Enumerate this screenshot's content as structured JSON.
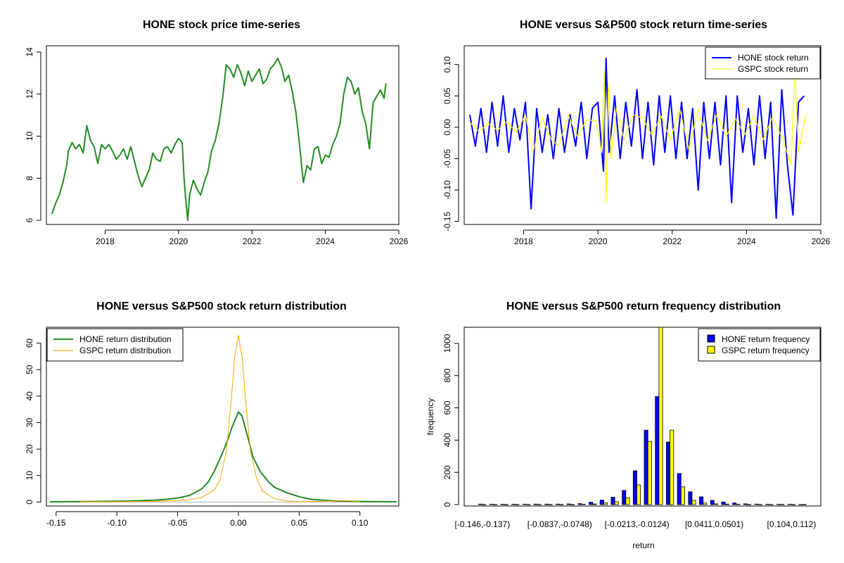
{
  "colors": {
    "green": "#228B22",
    "blue": "#0000FF",
    "yellow": "#FFFF00",
    "orange": "#FFA500"
  },
  "chart_data": [
    {
      "type": "line",
      "title": "HONE stock price time-series",
      "xlim": [
        2016.4,
        2026.0
      ],
      "ylim": [
        5.8,
        14.3
      ],
      "xticks": [
        "2018",
        "2020",
        "2022",
        "2024",
        "2026"
      ],
      "xtick_values": [
        2018,
        2020,
        2022,
        2024,
        2026
      ],
      "yticks": [
        "6",
        "8",
        "10",
        "12",
        "14"
      ],
      "ytick_values": [
        6,
        8,
        10,
        12,
        14
      ],
      "color": "#228B22",
      "series": [
        {
          "x": [
            2016.55,
            2016.65,
            2016.75,
            2016.85,
            2016.95,
            2017.0,
            2017.1,
            2017.2,
            2017.3,
            2017.4,
            2017.5,
            2017.6,
            2017.7,
            2017.8,
            2017.9,
            2018.0,
            2018.1,
            2018.2,
            2018.3,
            2018.4,
            2018.5,
            2018.6,
            2018.7,
            2018.8,
            2018.9,
            2019.0,
            2019.1,
            2019.2,
            2019.3,
            2019.4,
            2019.5,
            2019.6,
            2019.7,
            2019.8,
            2019.9,
            2020.0,
            2020.1,
            2020.15,
            2020.2,
            2020.25,
            2020.3,
            2020.4,
            2020.5,
            2020.6,
            2020.7,
            2020.8,
            2020.9,
            2021.0,
            2021.1,
            2021.2,
            2021.3,
            2021.4,
            2021.5,
            2021.6,
            2021.7,
            2021.8,
            2021.9,
            2022.0,
            2022.1,
            2022.2,
            2022.3,
            2022.4,
            2022.5,
            2022.6,
            2022.7,
            2022.8,
            2022.9,
            2023.0,
            2023.1,
            2023.2,
            2023.3,
            2023.4,
            2023.5,
            2023.6,
            2023.7,
            2023.8,
            2023.9,
            2024.0,
            2024.1,
            2024.2,
            2024.3,
            2024.4,
            2024.5,
            2024.6,
            2024.7,
            2024.8,
            2024.9,
            2025.0,
            2025.1,
            2025.2,
            2025.3,
            2025.4,
            2025.5,
            2025.6,
            2025.65
          ],
          "values": [
            6.3,
            6.8,
            7.2,
            7.8,
            8.6,
            9.3,
            9.7,
            9.4,
            9.6,
            9.2,
            10.5,
            9.8,
            9.5,
            8.7,
            9.6,
            9.4,
            9.6,
            9.3,
            8.9,
            9.1,
            9.4,
            8.9,
            9.5,
            8.8,
            8.1,
            7.6,
            8.0,
            8.4,
            9.2,
            8.9,
            8.8,
            9.4,
            9.5,
            9.2,
            9.6,
            9.9,
            9.7,
            8.0,
            6.9,
            6.0,
            7.2,
            7.9,
            7.5,
            7.2,
            7.8,
            8.3,
            9.3,
            9.8,
            10.6,
            11.8,
            13.4,
            13.2,
            12.8,
            13.4,
            13.0,
            12.4,
            13.1,
            12.6,
            12.9,
            13.2,
            12.5,
            12.7,
            13.2,
            13.4,
            13.7,
            13.3,
            12.6,
            12.9,
            12.1,
            11.1,
            9.5,
            7.8,
            8.6,
            8.4,
            9.4,
            9.5,
            8.7,
            9.1,
            9.0,
            9.6,
            10.0,
            10.6,
            12.0,
            12.8,
            12.6,
            12.0,
            12.3,
            11.2,
            10.6,
            9.4,
            11.6,
            11.9,
            12.2,
            11.8,
            12.5
          ]
        }
      ]
    },
    {
      "type": "line",
      "title": "HONE versus S&P500 stock return time-series",
      "xlim": [
        2016.4,
        2026.0
      ],
      "ylim": [
        -0.155,
        0.13
      ],
      "xticks": [
        "2018",
        "2020",
        "2022",
        "2024",
        "2026"
      ],
      "xtick_values": [
        2018,
        2020,
        2022,
        2024,
        2026
      ],
      "yticks": [
        "-0.15",
        "-0.10",
        "-0.05",
        "0.00",
        "0.05",
        "0.10"
      ],
      "ytick_values": [
        -0.15,
        -0.1,
        -0.05,
        0.0,
        0.05,
        0.1
      ],
      "legend_position": "top-right",
      "series": [
        {
          "name": "HONE stock return",
          "color": "#0000FF",
          "x": [
            2016.55,
            2016.7,
            2016.85,
            2017.0,
            2017.15,
            2017.3,
            2017.45,
            2017.6,
            2017.75,
            2017.9,
            2018.05,
            2018.2,
            2018.35,
            2018.5,
            2018.65,
            2018.8,
            2018.95,
            2019.1,
            2019.25,
            2019.4,
            2019.55,
            2019.7,
            2019.85,
            2020.0,
            2020.15,
            2020.22,
            2020.3,
            2020.45,
            2020.6,
            2020.75,
            2020.9,
            2021.05,
            2021.2,
            2021.35,
            2021.5,
            2021.65,
            2021.8,
            2021.95,
            2022.1,
            2022.25,
            2022.4,
            2022.55,
            2022.7,
            2022.85,
            2023.0,
            2023.15,
            2023.3,
            2023.45,
            2023.6,
            2023.75,
            2023.9,
            2024.05,
            2024.2,
            2024.35,
            2024.5,
            2024.65,
            2024.8,
            2024.95,
            2025.1,
            2025.25,
            2025.4,
            2025.55
          ],
          "values": [
            0.02,
            -0.03,
            0.03,
            -0.04,
            0.04,
            -0.03,
            0.05,
            -0.04,
            0.03,
            -0.02,
            0.04,
            -0.13,
            0.03,
            -0.04,
            0.02,
            -0.05,
            0.03,
            -0.04,
            0.02,
            -0.03,
            0.04,
            -0.05,
            0.03,
            0.04,
            -0.07,
            0.11,
            -0.04,
            0.05,
            -0.05,
            0.04,
            -0.03,
            0.06,
            -0.05,
            0.04,
            -0.06,
            0.05,
            -0.04,
            0.05,
            -0.05,
            0.04,
            -0.05,
            0.03,
            -0.1,
            0.04,
            -0.05,
            0.04,
            -0.06,
            0.05,
            -0.12,
            0.05,
            -0.04,
            0.03,
            -0.06,
            0.05,
            -0.05,
            0.04,
            -0.145,
            0.06,
            -0.06,
            -0.14,
            0.04,
            0.05
          ]
        },
        {
          "name": "GSPC stock return",
          "color": "#FFFF00",
          "x": [
            2016.55,
            2016.8,
            2017.05,
            2017.3,
            2017.55,
            2017.8,
            2018.05,
            2018.25,
            2018.5,
            2018.75,
            2018.95,
            2019.2,
            2019.45,
            2019.7,
            2019.95,
            2020.1,
            2020.17,
            2020.22,
            2020.28,
            2020.35,
            2020.5,
            2020.7,
            2020.95,
            2021.2,
            2021.45,
            2021.7,
            2021.95,
            2022.2,
            2022.45,
            2022.7,
            2022.95,
            2023.2,
            2023.45,
            2023.7,
            2023.95,
            2024.2,
            2024.45,
            2024.7,
            2024.95,
            2025.2,
            2025.3,
            2025.4,
            2025.6
          ],
          "values": [
            0.008,
            -0.007,
            0.006,
            -0.005,
            0.009,
            -0.008,
            0.02,
            -0.04,
            0.015,
            -0.02,
            -0.03,
            0.02,
            -0.015,
            0.012,
            0.01,
            -0.04,
            0.09,
            -0.12,
            0.07,
            -0.05,
            0.03,
            -0.02,
            0.02,
            0.015,
            -0.012,
            0.018,
            -0.02,
            0.03,
            -0.035,
            0.028,
            -0.022,
            0.02,
            -0.015,
            0.014,
            -0.012,
            0.018,
            -0.02,
            0.016,
            -0.015,
            -0.06,
            0.095,
            -0.04,
            0.02
          ]
        }
      ]
    },
    {
      "type": "line",
      "title": "HONE versus S&P500 stock return distribution",
      "xlim": [
        -0.158,
        0.132
      ],
      "ylim": [
        -1.5,
        66
      ],
      "xticks": [
        "-0.15",
        "-0.10",
        "-0.05",
        "0.00",
        "0.05",
        "0.10"
      ],
      "xtick_values": [
        -0.15,
        -0.1,
        -0.05,
        0.0,
        0.05,
        0.1
      ],
      "yticks": [
        "0",
        "10",
        "20",
        "30",
        "40",
        "50",
        "60"
      ],
      "ytick_values": [
        0,
        10,
        20,
        30,
        40,
        50,
        60
      ],
      "legend_position": "top-left",
      "series": [
        {
          "name": "HONE return distribution",
          "color": "#228B22",
          "x": [
            -0.155,
            -0.12,
            -0.09,
            -0.07,
            -0.06,
            -0.05,
            -0.04,
            -0.03,
            -0.025,
            -0.02,
            -0.015,
            -0.01,
            -0.005,
            0.0,
            0.003,
            0.008,
            0.012,
            0.018,
            0.025,
            0.03,
            0.04,
            0.05,
            0.06,
            0.08,
            0.1,
            0.13
          ],
          "values": [
            0.1,
            0.2,
            0.4,
            0.7,
            1.0,
            1.5,
            2.5,
            5.0,
            7.5,
            11.5,
            16.5,
            22.0,
            28.5,
            34.0,
            32.5,
            24.0,
            17.0,
            11.5,
            7.5,
            5.5,
            3.5,
            2.0,
            1.0,
            0.4,
            0.2,
            0.1
          ]
        },
        {
          "name": "GSPC return distribution",
          "color": "#FFA500",
          "x": [
            -0.13,
            -0.08,
            -0.06,
            -0.05,
            -0.04,
            -0.03,
            -0.02,
            -0.015,
            -0.01,
            -0.006,
            -0.003,
            0.0,
            0.003,
            0.006,
            0.01,
            0.015,
            0.02,
            0.03,
            0.04,
            0.05,
            0.09,
            0.1
          ],
          "values": [
            0.1,
            0.2,
            0.4,
            0.6,
            0.9,
            1.8,
            4.5,
            8.5,
            19.0,
            38.0,
            55.0,
            63.0,
            55.0,
            38.0,
            19.0,
            9.0,
            4.0,
            1.2,
            0.4,
            0.1,
            0.5,
            0.1
          ]
        }
      ]
    },
    {
      "type": "bar",
      "title": "HONE versus S&P500 return frequency distribution",
      "xlabel": "return",
      "ylabel": "frequency",
      "ylim": [
        0,
        1100
      ],
      "yticks": [
        "0",
        "200",
        "400",
        "600",
        "800",
        "1000"
      ],
      "ytick_values": [
        0,
        200,
        400,
        600,
        800,
        1000
      ],
      "category_count": 30,
      "xtick_labels": [
        "[-0.146,-0.137)",
        "[-0.0837,-0.0748)",
        "[-0.0213,-0.0124)",
        "[0.0411,0.0501)",
        "[0.104,0.112)"
      ],
      "xtick_category_index": [
        0,
        7,
        14,
        21,
        28
      ],
      "legend_position": "top-right",
      "series": [
        {
          "name": "HONE return frequency",
          "color": "#0000FF",
          "values": [
            3,
            2,
            2,
            2,
            2,
            3,
            3,
            3,
            4,
            6,
            15,
            28,
            46,
            88,
            210,
            462,
            670,
            388,
            193,
            80,
            48,
            26,
            16,
            10,
            5,
            3,
            2,
            2,
            2,
            1
          ]
        },
        {
          "name": "GSPC return frequency",
          "color": "#FFFF00",
          "values": [
            1,
            1,
            1,
            1,
            1,
            1,
            1,
            1,
            1,
            2,
            4,
            10,
            18,
            42,
            122,
            392,
            1160,
            462,
            110,
            26,
            10,
            5,
            3,
            2,
            1,
            1,
            1,
            1,
            1,
            1
          ]
        }
      ]
    }
  ]
}
